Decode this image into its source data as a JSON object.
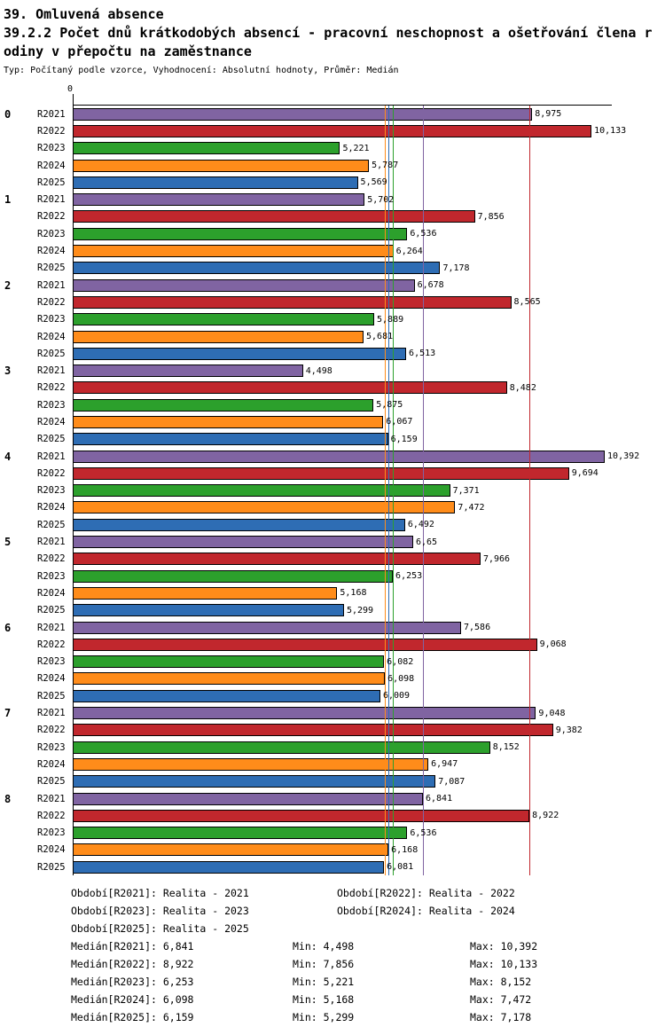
{
  "header": {
    "title": "39. Omluvená absence",
    "subtitle_line1": "39.2.2 Počet dnů krátkodobých absencí - pracovní neschopnost a ošetřování člena r",
    "subtitle_line2": "odiny v přepočtu na zaměstnance",
    "meta": "Typ: Počítaný podle vzorce, Vyhodnocení: Absolutní hodnoty, Průměr: Medián"
  },
  "chart_data": {
    "type": "bar",
    "orientation": "horizontal",
    "title": "39.2.2 Počet dnů krátkodobých absencí - pracovní neschopnost a ošetřování člena rodiny v přepočtu na zaměstnance",
    "axis_zero_label": "0",
    "xlim": [
      0,
      10.53
    ],
    "grid": false,
    "legend_position": "bottom",
    "series": [
      {
        "name": "R2021",
        "color": "#8064A2",
        "median": 6.841
      },
      {
        "name": "R2022",
        "color": "#C1272D",
        "median": 8.922
      },
      {
        "name": "R2023",
        "color": "#2CA02C",
        "median": 6.253
      },
      {
        "name": "R2024",
        "color": "#FF8C1A",
        "median": 6.098
      },
      {
        "name": "R2025",
        "color": "#2E6DB4",
        "median": 6.159
      }
    ],
    "groups": [
      {
        "label": "0",
        "values": [
          8.975,
          10.133,
          5.221,
          5.787,
          5.569
        ],
        "value_labels": [
          "8,975",
          "10,133",
          "5,221",
          "5,787",
          "5,569"
        ]
      },
      {
        "label": "1",
        "values": [
          5.702,
          7.856,
          6.536,
          6.264,
          7.178
        ],
        "value_labels": [
          "5,702",
          "7,856",
          "6,536",
          "6,264",
          "7,178"
        ]
      },
      {
        "label": "2",
        "values": [
          6.678,
          8.565,
          5.889,
          5.681,
          6.513
        ],
        "value_labels": [
          "6,678",
          "8,565",
          "5,889",
          "5,681",
          "6,513"
        ]
      },
      {
        "label": "3",
        "values": [
          4.498,
          8.482,
          5.875,
          6.067,
          6.159
        ],
        "value_labels": [
          "4,498",
          "8,482",
          "5,875",
          "6,067",
          "6,159"
        ]
      },
      {
        "label": "4",
        "values": [
          10.392,
          9.694,
          7.371,
          7.472,
          6.492
        ],
        "value_labels": [
          "10,392",
          "9,694",
          "7,371",
          "7,472",
          "6,492"
        ]
      },
      {
        "label": "5",
        "values": [
          6.65,
          7.966,
          6.253,
          5.168,
          5.299
        ],
        "value_labels": [
          "6,65",
          "7,966",
          "6,253",
          "5,168",
          "5,299"
        ]
      },
      {
        "label": "6",
        "values": [
          7.586,
          9.068,
          6.082,
          6.098,
          6.009
        ],
        "value_labels": [
          "7,586",
          "9,068",
          "6,082",
          "6,098",
          "6,009"
        ]
      },
      {
        "label": "7",
        "values": [
          9.048,
          9.382,
          8.152,
          6.947,
          7.087
        ],
        "value_labels": [
          "9,048",
          "9,382",
          "8,152",
          "6,947",
          "7,087"
        ]
      },
      {
        "label": "8",
        "values": [
          6.841,
          8.922,
          6.536,
          6.168,
          6.081
        ],
        "value_labels": [
          "6,841",
          "8,922",
          "6,536",
          "6,168",
          "6,081"
        ]
      }
    ]
  },
  "legend": {
    "rows": [
      [
        "Období[R2021]: Realita - 2021",
        "Období[R2022]: Realita - 2022"
      ],
      [
        "Období[R2023]: Realita - 2023",
        "Období[R2024]: Realita - 2024"
      ],
      [
        "Období[R2025]: Realita - 2025",
        ""
      ]
    ]
  },
  "stats": [
    {
      "median": "Medián[R2021]: 6,841",
      "min": "Min: 4,498",
      "max": "Max: 10,392"
    },
    {
      "median": "Medián[R2022]: 8,922",
      "min": "Min: 7,856",
      "max": "Max: 10,133"
    },
    {
      "median": "Medián[R2023]: 6,253",
      "min": "Min: 5,221",
      "max": "Max: 8,152"
    },
    {
      "median": "Medián[R2024]: 6,098",
      "min": "Min: 5,168",
      "max": "Max: 7,472"
    },
    {
      "median": "Medián[R2025]: 6,159",
      "min": "Min: 5,299",
      "max": "Max: 7,178"
    }
  ]
}
